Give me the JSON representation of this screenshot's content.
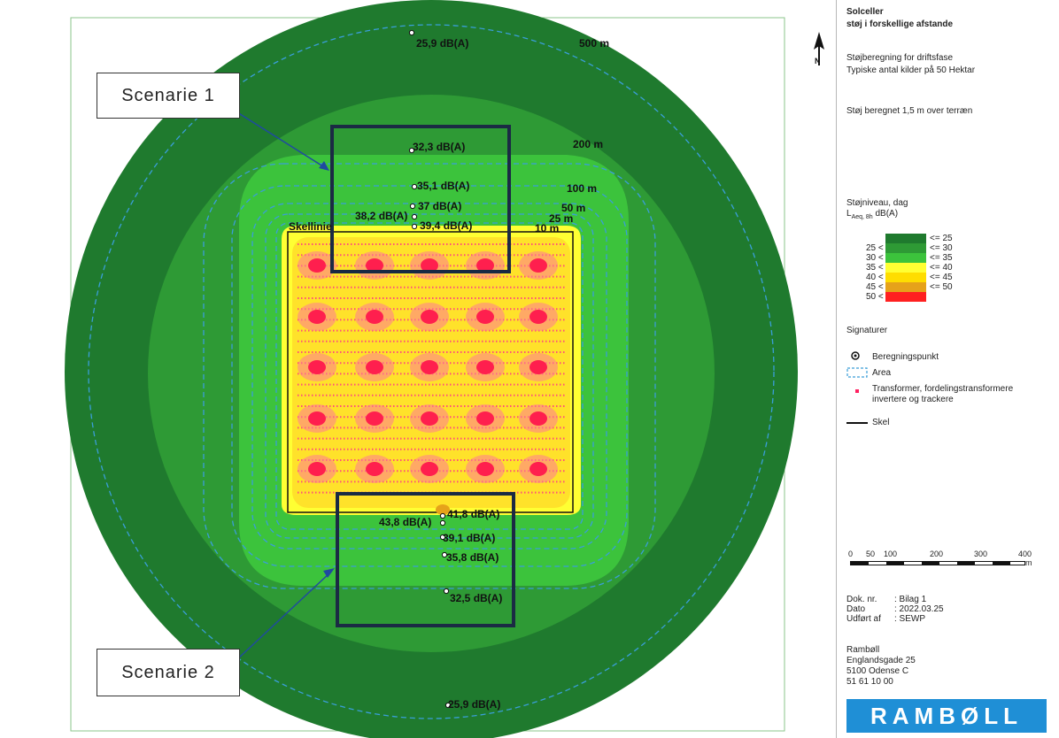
{
  "colors": {
    "band_le25": "#1f7a2e",
    "band_25_30": "#2e9a35",
    "band_30_35": "#3cc33c",
    "band_35_40": "#ffff33",
    "band_40_45": "#ffdd00",
    "band_45_50": "#e6a21a",
    "band_gt50": "#ff2020",
    "scenario_box": "#1b2a44",
    "area_dashed": "#3a9ed8",
    "brand": "#1f8fd6"
  },
  "map": {
    "north_label": "N",
    "boundary_label": "Skellinie",
    "ring_labels": [
      "500 m",
      "200 m",
      "100 m",
      "50 m",
      "25 m",
      "10 m"
    ],
    "points_top": [
      "25,9 dB(A)",
      "32,3 dB(A)",
      "35,1 dB(A)",
      "37 dB(A)",
      "38,2 dB(A)",
      "39,4 dB(A)"
    ],
    "points_bottom": [
      "41,8 dB(A)",
      "43,8 dB(A)",
      "39,1 dB(A)",
      "35,8 dB(A)",
      "32,5 dB(A)",
      "25,9 dB(A)"
    ]
  },
  "callouts": {
    "scenario1": "Scenarie 1",
    "scenario2": "Scenarie 2"
  },
  "legend": {
    "title1": "Solceller",
    "title2": "støj i forskellige afstande",
    "sub1": "Støjberegning for driftsfase",
    "sub2": "Typiske antal kilder på 50 Hektar",
    "height_note": "Støj beregnet 1,5 m over terræn",
    "level_title": "Støjniveau, dag",
    "level_unit_prefix": "L",
    "level_unit_sub": "Aeq, 8h",
    "level_unit_suffix": " dB(A)",
    "classes_left": [
      "25 <",
      "30 <",
      "35 <",
      "40 <",
      "45 <",
      "50 <"
    ],
    "classes_right": [
      "<= 25",
      "<= 30",
      "<= 35",
      "<= 40",
      "<= 45",
      "<= 50"
    ],
    "signatures_title": "Signaturer",
    "sig_point": "Beregningspunkt",
    "sig_area": "Area",
    "sig_transformer1": "Transformer, fordelingstransformere",
    "sig_transformer2": "invertere og trackere",
    "sig_skel": "Skel",
    "scale_ticks": [
      "0",
      "50",
      "100",
      "200",
      "300",
      "400"
    ],
    "scale_unit": "m",
    "doc_label": "Dok. nr.",
    "doc_value": ": Bilag 1",
    "date_label": "Dato",
    "date_value": ": 2022.03.25",
    "by_label": "Udført af",
    "by_value": ": SEWP",
    "company": "Rambøll",
    "address1": "Englandsgade 25",
    "address2": "5100  Odense C",
    "phone": "51 61 10 00",
    "logo_text": "RAMBØLL"
  }
}
